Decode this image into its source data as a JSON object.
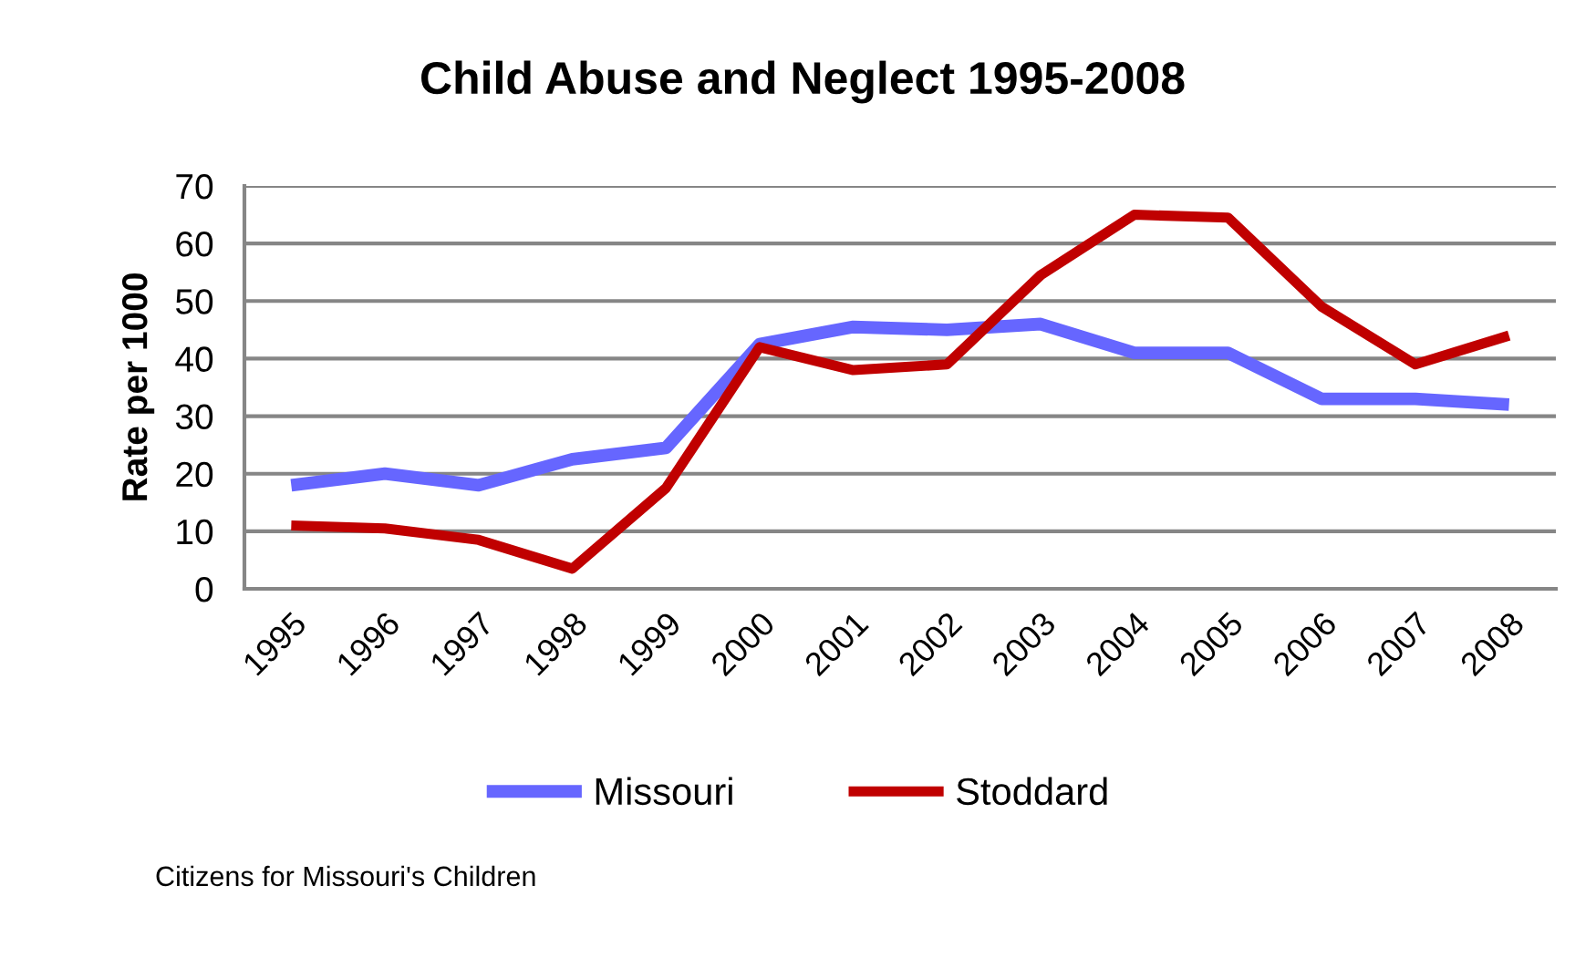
{
  "chart_data": {
    "type": "line",
    "title": "Child Abuse and Neglect 1995-2008",
    "ylabel": "Rate per 1000",
    "categories": [
      "1995",
      "1996",
      "1997",
      "1998",
      "1999",
      "2000",
      "2001",
      "2002",
      "2003",
      "2004",
      "2005",
      "2006",
      "2007",
      "2008"
    ],
    "series": [
      {
        "name": "Missouri",
        "color": "#6666ff",
        "values": [
          18,
          20,
          18,
          22.5,
          24.5,
          42.5,
          45.5,
          45,
          46,
          41,
          41,
          33,
          33,
          32
        ]
      },
      {
        "name": "Stoddard",
        "color": "#c00000",
        "values": [
          11,
          10.5,
          8.5,
          3.5,
          17.5,
          42,
          38,
          39,
          54.5,
          65,
          64.5,
          49,
          39,
          44
        ]
      }
    ],
    "ylim": [
      0,
      70
    ],
    "yticks": [
      0,
      10,
      20,
      30,
      40,
      50,
      60,
      70
    ],
    "grid": "y",
    "legend": "bottom",
    "annotations": [
      "Citizens for Missouri's Children"
    ]
  }
}
